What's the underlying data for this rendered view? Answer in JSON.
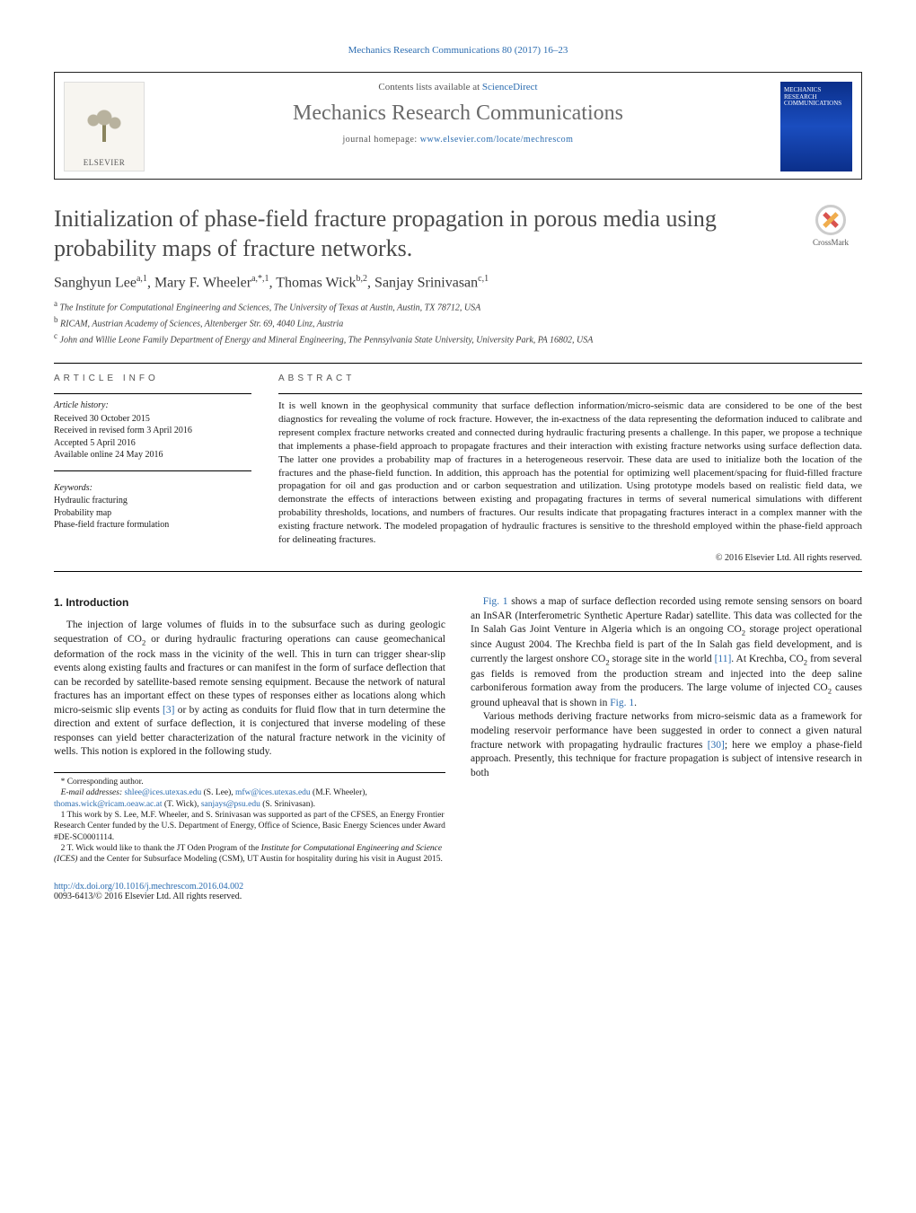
{
  "top_citation": "Mechanics Research Communications 80 (2017) 16–23",
  "header": {
    "contents_prefix": "Contents lists available at ",
    "contents_link": "ScienceDirect",
    "journal_name": "Mechanics Research Communications",
    "homepage_prefix": "journal homepage: ",
    "homepage_link": "www.elsevier.com/locate/mechrescom",
    "publisher_logo_text": "ELSEVIER",
    "cover_text": "MECHANICS RESEARCH COMMUNICATIONS"
  },
  "crossmark_label": "CrossMark",
  "title": "Initialization of phase-field fracture propagation in porous media using probability maps of fracture networks.",
  "authors_html": "Sanghyun Lee<sup>a,1</sup>, Mary F. Wheeler<sup>a,*,1</sup>, Thomas Wick<sup>b,2</sup>, Sanjay Srinivasan<sup>c,1</sup>",
  "affiliations": [
    "a The Institute for Computational Engineering and Sciences, The University of Texas at Austin, Austin, TX 78712, USA",
    "b RICAM, Austrian Academy of Sciences, Altenberger Str. 69, 4040 Linz, Austria",
    "c John and Willie Leone Family Department of Energy and Mineral Engineering, The Pennsylvania State University, University Park, PA 16802, USA"
  ],
  "article_info": {
    "heading": "ARTICLE INFO",
    "history_label": "Article history:",
    "history": [
      "Received 30 October 2015",
      "Received in revised form 3 April 2016",
      "Accepted 5 April 2016",
      "Available online 24 May 2016"
    ],
    "keywords_label": "Keywords:",
    "keywords": [
      "Hydraulic fracturing",
      "Probability map",
      "Phase-field fracture formulation"
    ]
  },
  "abstract": {
    "heading": "ABSTRACT",
    "text": "It is well known in the geophysical community that surface deflection information/micro-seismic data are considered to be one of the best diagnostics for revealing the volume of rock fracture. However, the in-exactness of the data representing the deformation induced to calibrate and represent complex fracture networks created and connected during hydraulic fracturing presents a challenge. In this paper, we propose a technique that implements a phase-field approach to propagate fractures and their interaction with existing fracture networks using surface deflection data. The latter one provides a probability map of fractures in a heterogeneous reservoir. These data are used to initialize both the location of the fractures and the phase-field function. In addition, this approach has the potential for optimizing well placement/spacing for fluid-filled fracture propagation for oil and gas production and or carbon sequestration and utilization. Using prototype models based on realistic field data, we demonstrate the effects of interactions between existing and propagating fractures in terms of several numerical simulations with different probability thresholds, locations, and numbers of fractures. Our results indicate that propagating fractures interact in a complex manner with the existing fracture network. The modeled propagation of hydraulic fractures is sensitive to the threshold employed within the phase-field approach for delineating fractures.",
    "copyright": "© 2016 Elsevier Ltd. All rights reserved."
  },
  "body": {
    "section_heading": "1. Introduction",
    "p1a": "The injection of large volumes of fluids in to the subsurface such as during geologic sequestration of CO",
    "p1b": " or during hydraulic fracturing operations can cause geomechanical deformation of the rock mass in the vicinity of the well. This in turn can trigger shear-slip events along existing faults and fractures or can manifest in the form of surface deflection that can be recorded by satellite-based remote sensing equipment. Because the network of natural fractures has an important effect on these types of responses either as locations along which micro-seismic slip events ",
    "ref3": "[3]",
    "p1c": " or by acting as conduits for fluid flow that in turn determine the direction and extent of surface deflection, it is conjectured that inverse modeling of these responses can yield better characterization of the natural fracture network in the vicinity of wells. This notion is explored in the following study.",
    "p2a_fig": "Fig. 1",
    "p2a": " shows a map of surface deflection recorded using remote sensing sensors on board an InSAR (Interferometric Synthetic Aperture Radar) satellite. This data was collected for the In Salah Gas Joint Venture in Algeria which is an ongoing CO",
    "p2b": " storage project operational since August 2004. The Krechba field is part of the In Salah gas field development, and is currently the largest onshore CO",
    "p2c": " storage site in the world ",
    "ref11": "[11]",
    "p2d": ". At Krechba, CO",
    "p2e": " from several gas fields is removed from the production stream and injected into the deep saline carboniferous formation away from the producers. The large volume of injected CO",
    "p2f": " causes ground upheaval that is shown in ",
    "p2f_fig": "Fig. 1",
    "p2g": ".",
    "p3a": "Various methods deriving fracture networks from micro-seismic data as a framework for modeling reservoir performance have been suggested in order to connect a given natural fracture network with propagating hydraulic fractures ",
    "ref30": "[30]",
    "p3b": "; here we employ a phase-field approach. Presently, this technique for fracture propagation is subject of intensive research in both"
  },
  "footnotes": {
    "corr": "* Corresponding author.",
    "email_label": "E-mail addresses:",
    "emails": [
      {
        "addr": "shlee@ices.utexas.edu",
        "who": "(S. Lee)"
      },
      {
        "addr": "mfw@ices.utexas.edu",
        "who": "(M.F. Wheeler)"
      },
      {
        "addr": "thomas.wick@ricam.oeaw.ac.at",
        "who": "(T. Wick)"
      },
      {
        "addr": "sanjays@psu.edu",
        "who": "(S. Srinivasan)"
      }
    ],
    "n1": "1 This work by S. Lee, M.F. Wheeler, and S. Srinivasan was supported as part of the CFSES, an Energy Frontier Research Center funded by the U.S. Department of Energy, Office of Science, Basic Energy Sciences under Award #DE-SC0001114.",
    "n2": "2 T. Wick would like to thank the JT Oden Program of the Institute for Computational Engineering and Science (ICES) and the Center for Subsurface Modeling (CSM), UT Austin for hospitality during his visit in August 2015."
  },
  "footer": {
    "doi": "http://dx.doi.org/10.1016/j.mechrescom.2016.04.002",
    "issn_line": "0093-6413/© 2016 Elsevier Ltd. All rights reserved."
  },
  "colors": {
    "link": "#2b6cb0",
    "text": "#1a1a1a",
    "muted": "#555555",
    "journal_grey": "#6b6b6b",
    "cover_bg": "#0b2f8a"
  }
}
